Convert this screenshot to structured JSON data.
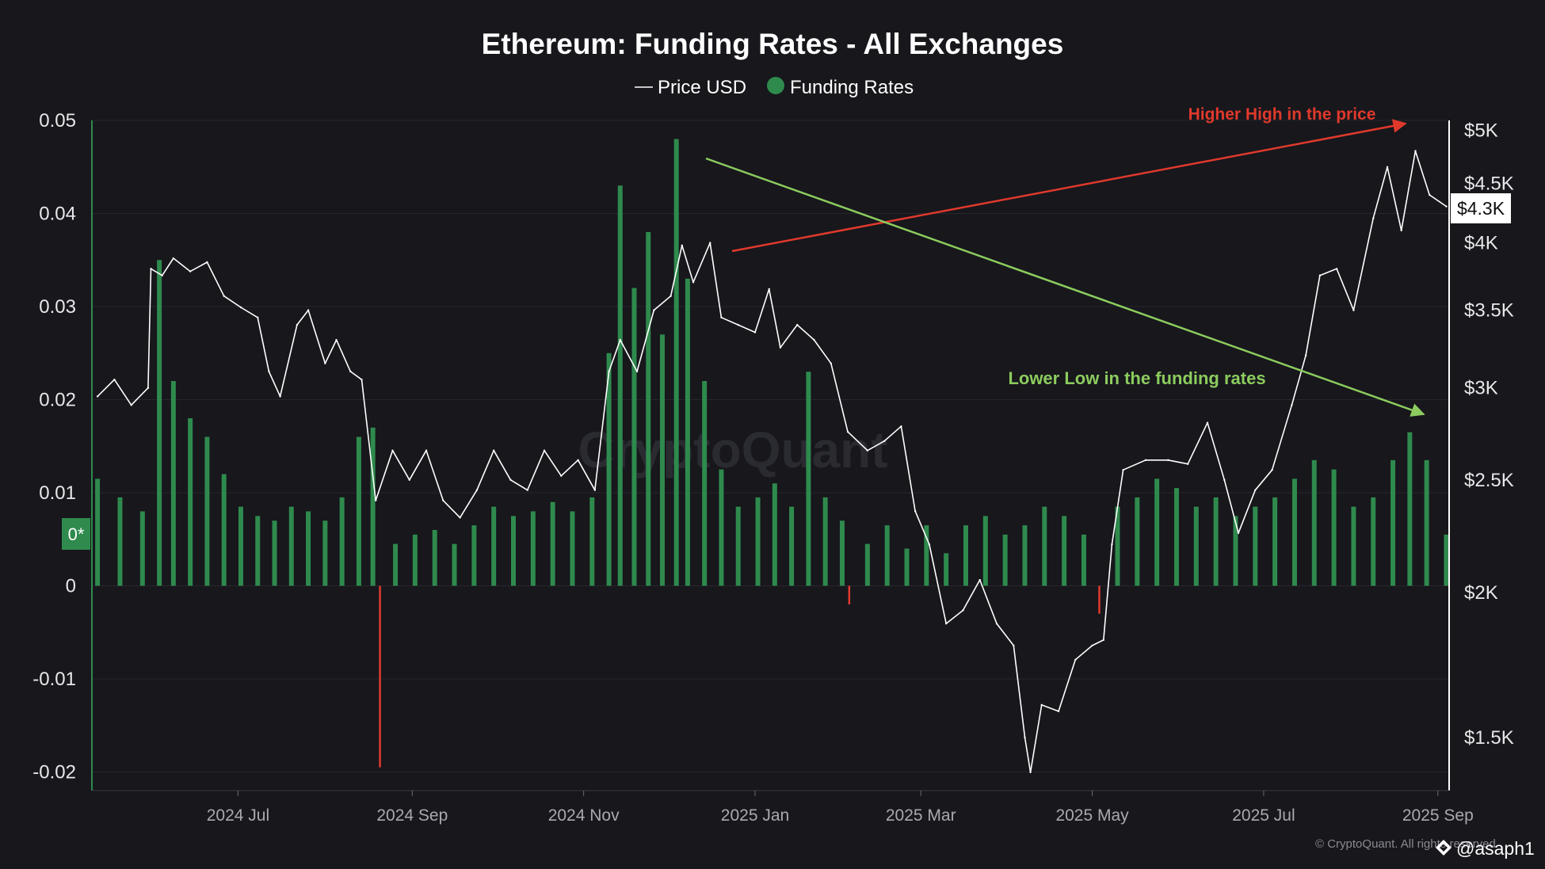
{
  "chart_data": {
    "type": "bar+line",
    "title": "Ethereum: Funding Rates - All Exchanges",
    "legend": [
      {
        "label": "Price USD",
        "marker": "line",
        "color": "#ffffff"
      },
      {
        "label": "Funding Rates",
        "marker": "dot",
        "color": "#2f8a4d"
      }
    ],
    "legend_placement": "top-center",
    "grid": true,
    "left_axis": {
      "ylim": [
        -0.022,
        0.05
      ],
      "ticks": [
        0.05,
        0.04,
        0.03,
        0.02,
        0.01,
        0,
        -0.01,
        -0.02
      ],
      "tick_labels": [
        "0.05",
        "0.04",
        "0.03",
        "0.02",
        "0.01",
        "0",
        "-0.01",
        "-0.02"
      ],
      "zero_badge": "0*"
    },
    "right_axis": {
      "scale": "log",
      "ylim": [
        1350,
        5100
      ],
      "ticks": [
        5000,
        4500,
        4000,
        3500,
        3000,
        2500,
        2000,
        1500
      ],
      "tick_labels": [
        "$5K",
        "$4.5K",
        "$4K",
        "$3.5K",
        "$3K",
        "$2.5K",
        "$2K",
        "$1.5K"
      ],
      "current_price_label": "$4.3K",
      "current_price": 4300
    },
    "x_axis": {
      "start": "2024-05-10",
      "end": "2025-09-05",
      "ticks": [
        {
          "date": "2024-07-01",
          "label": "2024 Jul"
        },
        {
          "date": "2024-09-01",
          "label": "2024 Sep"
        },
        {
          "date": "2024-11-01",
          "label": "2024 Nov"
        },
        {
          "date": "2025-01-01",
          "label": "2025 Jan"
        },
        {
          "date": "2025-03-01",
          "label": "2025 Mar"
        },
        {
          "date": "2025-05-01",
          "label": "2025 May"
        },
        {
          "date": "2025-07-01",
          "label": "2025 Jul"
        },
        {
          "date": "2025-09-01",
          "label": "2025 Sep"
        }
      ]
    },
    "series": [
      {
        "name": "Price USD",
        "type": "line",
        "axis": "right",
        "color": "#ffffff",
        "points": [
          [
            "2024-05-12",
            2950
          ],
          [
            "2024-05-18",
            3050
          ],
          [
            "2024-05-24",
            2900
          ],
          [
            "2024-05-30",
            3000
          ],
          [
            "2024-05-31",
            3800
          ],
          [
            "2024-06-04",
            3750
          ],
          [
            "2024-06-08",
            3880
          ],
          [
            "2024-06-14",
            3780
          ],
          [
            "2024-06-20",
            3850
          ],
          [
            "2024-06-26",
            3600
          ],
          [
            "2024-07-02",
            3520
          ],
          [
            "2024-07-08",
            3450
          ],
          [
            "2024-07-12",
            3100
          ],
          [
            "2024-07-16",
            2950
          ],
          [
            "2024-07-22",
            3400
          ],
          [
            "2024-07-26",
            3500
          ],
          [
            "2024-08-01",
            3150
          ],
          [
            "2024-08-05",
            3300
          ],
          [
            "2024-08-10",
            3100
          ],
          [
            "2024-08-14",
            3050
          ],
          [
            "2024-08-19",
            2400
          ],
          [
            "2024-08-25",
            2650
          ],
          [
            "2024-08-31",
            2500
          ],
          [
            "2024-09-06",
            2650
          ],
          [
            "2024-09-12",
            2400
          ],
          [
            "2024-09-18",
            2320
          ],
          [
            "2024-09-24",
            2450
          ],
          [
            "2024-09-30",
            2650
          ],
          [
            "2024-10-06",
            2500
          ],
          [
            "2024-10-12",
            2450
          ],
          [
            "2024-10-18",
            2650
          ],
          [
            "2024-10-24",
            2520
          ],
          [
            "2024-10-30",
            2600
          ],
          [
            "2024-11-05",
            2450
          ],
          [
            "2024-11-10",
            3100
          ],
          [
            "2024-11-14",
            3300
          ],
          [
            "2024-11-20",
            3100
          ],
          [
            "2024-11-26",
            3500
          ],
          [
            "2024-12-02",
            3600
          ],
          [
            "2024-12-06",
            3980
          ],
          [
            "2024-12-10",
            3700
          ],
          [
            "2024-12-16",
            4000
          ],
          [
            "2024-12-20",
            3450
          ],
          [
            "2024-12-26",
            3400
          ],
          [
            "2025-01-01",
            3350
          ],
          [
            "2025-01-06",
            3650
          ],
          [
            "2025-01-10",
            3250
          ],
          [
            "2025-01-16",
            3400
          ],
          [
            "2025-01-22",
            3300
          ],
          [
            "2025-01-28",
            3150
          ],
          [
            "2025-02-03",
            2750
          ],
          [
            "2025-02-10",
            2650
          ],
          [
            "2025-02-16",
            2700
          ],
          [
            "2025-02-22",
            2780
          ],
          [
            "2025-02-27",
            2350
          ],
          [
            "2025-03-04",
            2200
          ],
          [
            "2025-03-10",
            1880
          ],
          [
            "2025-03-16",
            1930
          ],
          [
            "2025-03-22",
            2050
          ],
          [
            "2025-03-28",
            1880
          ],
          [
            "2025-04-03",
            1800
          ],
          [
            "2025-04-07",
            1500
          ],
          [
            "2025-04-09",
            1400
          ],
          [
            "2025-04-13",
            1600
          ],
          [
            "2025-04-19",
            1580
          ],
          [
            "2025-04-25",
            1750
          ],
          [
            "2025-05-01",
            1800
          ],
          [
            "2025-05-05",
            1820
          ],
          [
            "2025-05-08",
            2200
          ],
          [
            "2025-05-12",
            2550
          ],
          [
            "2025-05-20",
            2600
          ],
          [
            "2025-05-28",
            2600
          ],
          [
            "2025-06-04",
            2580
          ],
          [
            "2025-06-11",
            2800
          ],
          [
            "2025-06-17",
            2500
          ],
          [
            "2025-06-22",
            2250
          ],
          [
            "2025-06-28",
            2450
          ],
          [
            "2025-07-04",
            2550
          ],
          [
            "2025-07-11",
            2900
          ],
          [
            "2025-07-16",
            3200
          ],
          [
            "2025-07-21",
            3750
          ],
          [
            "2025-07-27",
            3800
          ],
          [
            "2025-08-02",
            3500
          ],
          [
            "2025-08-09",
            4200
          ],
          [
            "2025-08-14",
            4650
          ],
          [
            "2025-08-19",
            4100
          ],
          [
            "2025-08-24",
            4800
          ],
          [
            "2025-08-29",
            4400
          ],
          [
            "2025-09-04",
            4300
          ]
        ]
      },
      {
        "name": "Funding Rates",
        "type": "bar",
        "axis": "left",
        "color_positive": "#2f8a4d",
        "color_negative": "#e23a2e",
        "points": [
          [
            "2024-05-12",
            0.0115
          ],
          [
            "2024-05-20",
            0.0095
          ],
          [
            "2024-05-28",
            0.008
          ],
          [
            "2024-06-03",
            0.035
          ],
          [
            "2024-06-08",
            0.022
          ],
          [
            "2024-06-14",
            0.018
          ],
          [
            "2024-06-20",
            0.016
          ],
          [
            "2024-06-26",
            0.012
          ],
          [
            "2024-07-02",
            0.0085
          ],
          [
            "2024-07-08",
            0.0075
          ],
          [
            "2024-07-14",
            0.007
          ],
          [
            "2024-07-20",
            0.0085
          ],
          [
            "2024-07-26",
            0.008
          ],
          [
            "2024-08-01",
            0.007
          ],
          [
            "2024-08-07",
            0.0095
          ],
          [
            "2024-08-13",
            0.016
          ],
          [
            "2024-08-18",
            0.017
          ],
          [
            "2024-08-21",
            -0.0195
          ],
          [
            "2024-08-26",
            0.0045
          ],
          [
            "2024-09-02",
            0.0055
          ],
          [
            "2024-09-09",
            0.006
          ],
          [
            "2024-09-16",
            0.0045
          ],
          [
            "2024-09-23",
            0.0065
          ],
          [
            "2024-09-30",
            0.0085
          ],
          [
            "2024-10-07",
            0.0075
          ],
          [
            "2024-10-14",
            0.008
          ],
          [
            "2024-10-21",
            0.009
          ],
          [
            "2024-10-28",
            0.008
          ],
          [
            "2024-11-04",
            0.0095
          ],
          [
            "2024-11-10",
            0.025
          ],
          [
            "2024-11-14",
            0.043
          ],
          [
            "2024-11-19",
            0.032
          ],
          [
            "2024-11-24",
            0.038
          ],
          [
            "2024-11-29",
            0.027
          ],
          [
            "2024-12-04",
            0.048
          ],
          [
            "2024-12-08",
            0.033
          ],
          [
            "2024-12-14",
            0.022
          ],
          [
            "2024-12-20",
            0.0125
          ],
          [
            "2024-12-26",
            0.0085
          ],
          [
            "2025-01-02",
            0.0095
          ],
          [
            "2025-01-08",
            0.011
          ],
          [
            "2025-01-14",
            0.0085
          ],
          [
            "2025-01-20",
            0.023
          ],
          [
            "2025-01-26",
            0.0095
          ],
          [
            "2025-02-01",
            0.007
          ],
          [
            "2025-02-04",
            -0.002
          ],
          [
            "2025-02-10",
            0.0045
          ],
          [
            "2025-02-17",
            0.0065
          ],
          [
            "2025-02-24",
            0.004
          ],
          [
            "2025-03-03",
            0.0065
          ],
          [
            "2025-03-10",
            0.0035
          ],
          [
            "2025-03-17",
            0.0065
          ],
          [
            "2025-03-24",
            0.0075
          ],
          [
            "2025-03-31",
            0.0055
          ],
          [
            "2025-04-07",
            0.0065
          ],
          [
            "2025-04-14",
            0.0085
          ],
          [
            "2025-04-21",
            0.0075
          ],
          [
            "2025-04-28",
            0.0055
          ],
          [
            "2025-05-04",
            -0.003
          ],
          [
            "2025-05-10",
            0.0085
          ],
          [
            "2025-05-17",
            0.0095
          ],
          [
            "2025-05-24",
            0.0115
          ],
          [
            "2025-05-31",
            0.0105
          ],
          [
            "2025-06-07",
            0.0085
          ],
          [
            "2025-06-14",
            0.0095
          ],
          [
            "2025-06-21",
            0.0075
          ],
          [
            "2025-06-28",
            0.0085
          ],
          [
            "2025-07-05",
            0.0095
          ],
          [
            "2025-07-12",
            0.0115
          ],
          [
            "2025-07-19",
            0.0135
          ],
          [
            "2025-07-26",
            0.0125
          ],
          [
            "2025-08-02",
            0.0085
          ],
          [
            "2025-08-09",
            0.0095
          ],
          [
            "2025-08-16",
            0.0135
          ],
          [
            "2025-08-22",
            0.0165
          ],
          [
            "2025-08-28",
            0.0135
          ],
          [
            "2025-09-04",
            0.0055
          ]
        ]
      }
    ],
    "annotations": [
      {
        "text": "Higher High in the price",
        "color": "#e0392c"
      },
      {
        "text": "Lower Low in the funding rates",
        "color": "#8ccc5e"
      }
    ]
  },
  "watermark": "CryptoQuant",
  "credit": "© CryptoQuant. All rights reserved",
  "handle": "@asaph1"
}
